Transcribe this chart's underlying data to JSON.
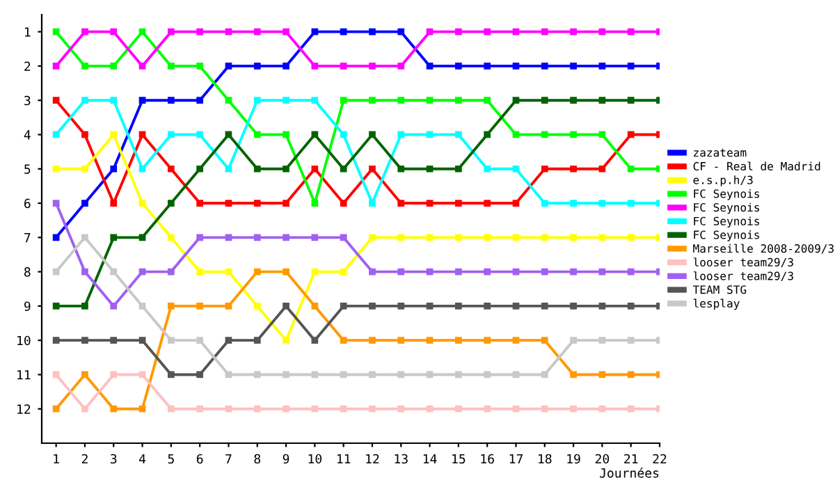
{
  "chart_data": {
    "type": "line",
    "xlabel": "Journées",
    "x": [
      1,
      2,
      3,
      4,
      5,
      6,
      7,
      8,
      9,
      10,
      11,
      12,
      13,
      14,
      15,
      16,
      17,
      18,
      19,
      20,
      21,
      22
    ],
    "xlim": [
      0.5,
      22
    ],
    "xticks": [
      1,
      2,
      3,
      4,
      5,
      6,
      7,
      8,
      9,
      10,
      11,
      12,
      13,
      14,
      15,
      16,
      17,
      18,
      19,
      20,
      21,
      22
    ],
    "ylim": [
      13,
      0.5
    ],
    "yticks": [
      1,
      2,
      3,
      4,
      5,
      6,
      7,
      8,
      9,
      10,
      11,
      12
    ],
    "grid": false,
    "legend": "right",
    "marker": "square",
    "line_style": "solid",
    "series": [
      {
        "name": "zazateam",
        "color": "#0000ff",
        "values": [
          7,
          6,
          5,
          3,
          3,
          3,
          2,
          2,
          2,
          1,
          1,
          1,
          1,
          2,
          2,
          2,
          2,
          2,
          2,
          2,
          2,
          2
        ]
      },
      {
        "name": "CF - Real de Madrid",
        "color": "#ff0000",
        "values": [
          3,
          4,
          6,
          4,
          5,
          6,
          6,
          6,
          6,
          5,
          6,
          5,
          6,
          6,
          6,
          6,
          6,
          5,
          5,
          5,
          4,
          4
        ]
      },
      {
        "name": "e.s.p.h/3",
        "color": "#ffff00",
        "values": [
          5,
          5,
          4,
          6,
          7,
          8,
          8,
          9,
          10,
          8,
          8,
          7,
          7,
          7,
          7,
          7,
          7,
          7,
          7,
          7,
          7,
          7
        ]
      },
      {
        "name": "FC Seynois",
        "color": "#00ff00",
        "values": [
          1,
          2,
          2,
          1,
          2,
          2,
          3,
          4,
          4,
          6,
          3,
          3,
          3,
          3,
          3,
          3,
          4,
          4,
          4,
          4,
          5,
          5
        ]
      },
      {
        "name": "FC Seynois",
        "color": "#ff00ff",
        "values": [
          2,
          1,
          1,
          2,
          1,
          1,
          1,
          1,
          1,
          2,
          2,
          2,
          2,
          1,
          1,
          1,
          1,
          1,
          1,
          1,
          1,
          1
        ]
      },
      {
        "name": "FC Seynois",
        "color": "#00ffff",
        "values": [
          4,
          3,
          3,
          5,
          4,
          4,
          5,
          3,
          3,
          3,
          4,
          6,
          4,
          4,
          4,
          5,
          5,
          6,
          6,
          6,
          6,
          6
        ]
      },
      {
        "name": "FC Seynois",
        "color": "#006400",
        "values": [
          9,
          9,
          7,
          7,
          6,
          5,
          4,
          5,
          5,
          4,
          5,
          4,
          5,
          5,
          5,
          4,
          3,
          3,
          3,
          3,
          3,
          3
        ]
      },
      {
        "name": "Marseille 2008-2009/3",
        "color": "#ff9900",
        "values": [
          12,
          11,
          12,
          12,
          9,
          9,
          9,
          8,
          8,
          9,
          10,
          10,
          10,
          10,
          10,
          10,
          10,
          10,
          11,
          11,
          11,
          11
        ]
      },
      {
        "name": "looser team29/3",
        "color": "#ffc0c0",
        "values": [
          11,
          12,
          11,
          11,
          12,
          12,
          12,
          12,
          12,
          12,
          12,
          12,
          12,
          12,
          12,
          12,
          12,
          12,
          12,
          12,
          12,
          12
        ]
      },
      {
        "name": "looser team29/3",
        "color": "#a060f0",
        "values": [
          6,
          8,
          9,
          8,
          8,
          7,
          7,
          7,
          7,
          7,
          7,
          8,
          8,
          8,
          8,
          8,
          8,
          8,
          8,
          8,
          8,
          8
        ]
      },
      {
        "name": "TEAM STG",
        "color": "#555555",
        "values": [
          10,
          10,
          10,
          10,
          11,
          11,
          10,
          10,
          9,
          10,
          9,
          9,
          9,
          9,
          9,
          9,
          9,
          9,
          9,
          9,
          9,
          9
        ]
      },
      {
        "name": "lesplay",
        "color": "#c8c8c8",
        "values": [
          8,
          7,
          8,
          9,
          10,
          10,
          11,
          11,
          11,
          11,
          11,
          11,
          11,
          11,
          11,
          11,
          11,
          11,
          10,
          10,
          10,
          10
        ]
      }
    ]
  }
}
